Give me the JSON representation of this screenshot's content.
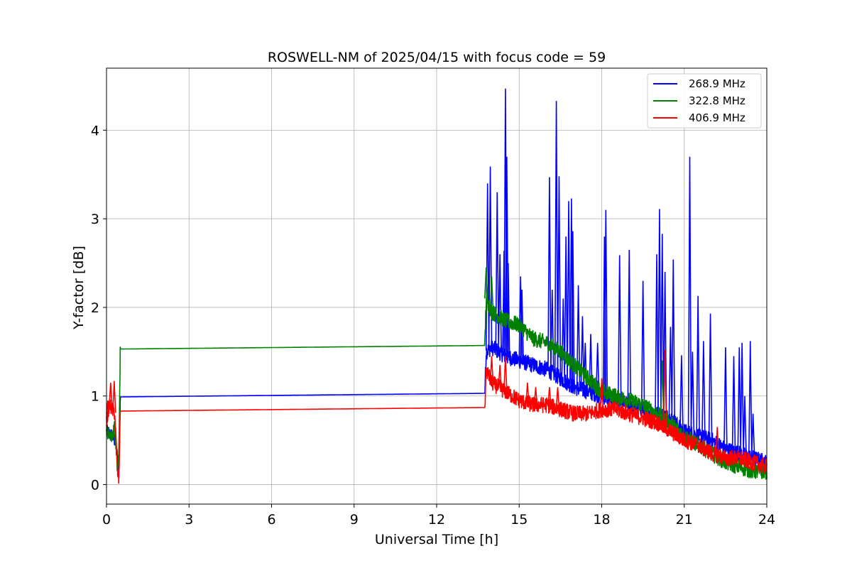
{
  "chart_data": {
    "type": "line",
    "title": "ROSWELL-NM of 2025/04/15 with focus code = 59",
    "xlabel": "Universal Time [h]",
    "ylabel": "Y-factor [dB]",
    "xlim": [
      0,
      24
    ],
    "ylim": [
      -0.22,
      4.7
    ],
    "xticks": [
      0,
      3,
      6,
      9,
      12,
      15,
      18,
      21,
      24
    ],
    "yticks": [
      0,
      1,
      2,
      3,
      4
    ],
    "grid": true,
    "legend_position": "upper right",
    "series": [
      {
        "name": "268.9 MHz",
        "color": "#0000ff",
        "x": [
          0.0,
          0.2,
          0.3,
          0.4,
          0.45,
          0.5,
          13.75,
          13.8,
          14.0,
          14.5,
          15.0,
          15.5,
          16.0,
          16.5,
          17.0,
          17.5,
          18.0,
          18.5,
          19.0,
          19.5,
          20.0,
          20.5,
          21.0,
          21.5,
          22.0,
          22.5,
          23.0,
          23.5,
          24.0
        ],
        "y": [
          0.6,
          0.55,
          0.5,
          0.3,
          0.1,
          0.99,
          1.03,
          1.5,
          1.55,
          1.45,
          1.4,
          1.35,
          1.3,
          1.2,
          1.1,
          1.05,
          1.0,
          0.95,
          0.9,
          0.85,
          0.8,
          0.75,
          0.6,
          0.55,
          0.5,
          0.4,
          0.35,
          0.3,
          0.25
        ],
        "spikes": [
          [
            13.85,
            3.4
          ],
          [
            13.95,
            3.59
          ],
          [
            14.2,
            3.3
          ],
          [
            14.3,
            2.6
          ],
          [
            14.45,
            2.64
          ],
          [
            14.5,
            4.47
          ],
          [
            14.55,
            3.7
          ],
          [
            14.6,
            2.5
          ],
          [
            15.05,
            2.35
          ],
          [
            15.1,
            2.2
          ],
          [
            16.1,
            3.47
          ],
          [
            16.2,
            2.2
          ],
          [
            16.35,
            4.33
          ],
          [
            16.45,
            3.48
          ],
          [
            16.6,
            2.1
          ],
          [
            16.7,
            2.8
          ],
          [
            16.8,
            3.2
          ],
          [
            16.9,
            3.23
          ],
          [
            16.95,
            2.86
          ],
          [
            17.15,
            2.25
          ],
          [
            17.3,
            1.9
          ],
          [
            17.4,
            1.6
          ],
          [
            17.6,
            1.7
          ],
          [
            17.85,
            1.6
          ],
          [
            18.1,
            2.8
          ],
          [
            18.15,
            3.1
          ],
          [
            18.65,
            2.59
          ],
          [
            19.0,
            2.65
          ],
          [
            19.5,
            2.3
          ],
          [
            20.0,
            2.6
          ],
          [
            20.1,
            3.11
          ],
          [
            20.2,
            2.83
          ],
          [
            20.3,
            2.4
          ],
          [
            20.5,
            1.78
          ],
          [
            20.6,
            2.54
          ],
          [
            20.9,
            1.46
          ],
          [
            21.2,
            3.7
          ],
          [
            21.3,
            1.5
          ],
          [
            21.5,
            2.13
          ],
          [
            21.7,
            1.62
          ],
          [
            21.95,
            1.93
          ],
          [
            22.5,
            1.55
          ],
          [
            22.8,
            1.45
          ],
          [
            23.0,
            1.55
          ],
          [
            23.1,
            1.6
          ],
          [
            23.2,
            1.0
          ],
          [
            23.4,
            1.62
          ],
          [
            23.5,
            0.8
          ]
        ]
      },
      {
        "name": "322.8 MHz",
        "color": "#008000",
        "x": [
          0.0,
          0.2,
          0.3,
          0.4,
          0.45,
          0.5,
          13.75,
          13.8,
          14.0,
          14.5,
          15.0,
          15.5,
          16.0,
          16.5,
          17.0,
          17.5,
          18.0,
          18.5,
          19.0,
          19.5,
          20.0,
          20.5,
          21.0,
          21.5,
          22.0,
          22.5,
          23.0,
          23.5,
          24.0
        ],
        "y": [
          0.6,
          0.55,
          0.65,
          0.15,
          0.35,
          1.53,
          1.57,
          2.1,
          1.95,
          1.85,
          1.8,
          1.65,
          1.6,
          1.5,
          1.35,
          1.2,
          1.05,
          1.0,
          0.95,
          0.9,
          0.8,
          0.7,
          0.55,
          0.45,
          0.35,
          0.25,
          0.2,
          0.15,
          0.15
        ],
        "spikes": [
          [
            13.8,
            2.45
          ],
          [
            14.0,
            2.35
          ],
          [
            20.2,
            1.4
          ]
        ]
      },
      {
        "name": "406.9 MHz",
        "color": "#ff0000",
        "x": [
          0.0,
          0.1,
          0.2,
          0.3,
          0.4,
          0.45,
          0.5,
          13.75,
          13.8,
          14.0,
          14.5,
          15.0,
          15.5,
          16.0,
          16.5,
          17.0,
          17.5,
          18.0,
          18.5,
          19.0,
          19.5,
          20.0,
          20.5,
          21.0,
          21.5,
          22.0,
          22.5,
          23.0,
          23.5,
          24.0
        ],
        "y": [
          0.7,
          0.9,
          0.85,
          0.8,
          0.15,
          0.05,
          0.83,
          0.87,
          1.3,
          1.15,
          1.05,
          0.95,
          0.9,
          0.9,
          0.85,
          0.8,
          0.8,
          0.85,
          0.85,
          0.8,
          0.75,
          0.7,
          0.6,
          0.5,
          0.45,
          0.35,
          0.3,
          0.3,
          0.25,
          0.2
        ],
        "spikes": [
          [
            0.05,
            0.95
          ],
          [
            0.15,
            1.15
          ],
          [
            0.28,
            1.17
          ],
          [
            14.0,
            1.45
          ],
          [
            14.3,
            1.35
          ],
          [
            14.5,
            1.45
          ],
          [
            15.3,
            1.15
          ],
          [
            15.6,
            1.1
          ],
          [
            16.1,
            1.1
          ],
          [
            16.4,
            1.1
          ],
          [
            18.0,
            1.2
          ],
          [
            20.3,
            1.52
          ],
          [
            22.2,
            0.65
          ]
        ]
      }
    ]
  }
}
